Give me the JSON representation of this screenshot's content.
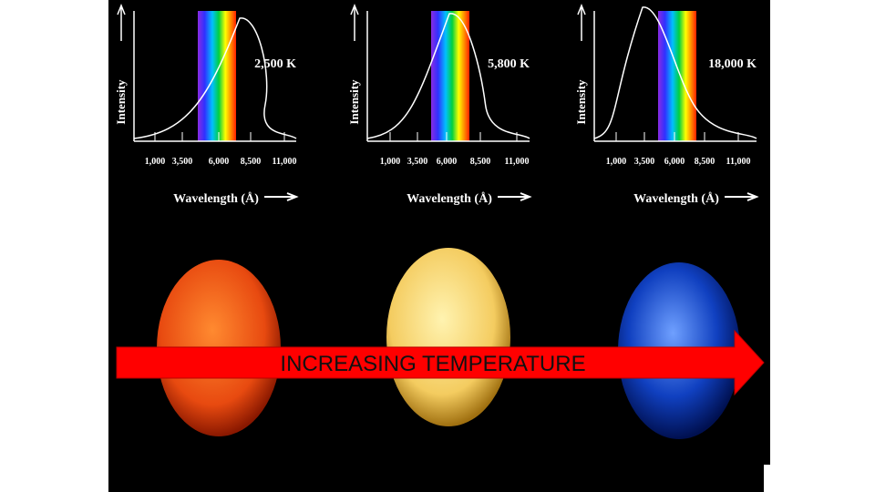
{
  "panels": [
    {
      "y_label": "Intensity",
      "temperature": "2,500 K",
      "x_ticks": [
        "1,000",
        "3,500",
        "6,000",
        "8,500",
        "11,000"
      ],
      "x_label": "Wavelength (Å)"
    },
    {
      "y_label": "Intensity",
      "temperature": "5,800 K",
      "x_ticks": [
        "1,000",
        "3,500",
        "6,000",
        "8,500",
        "11,000"
      ],
      "x_label": "Wavelength (Å)"
    },
    {
      "y_label": "Intensity",
      "temperature": "18,000 K",
      "x_ticks": [
        "1,000",
        "3,500",
        "6,000",
        "8,500",
        "11,000"
      ],
      "x_label": "Wavelength (Å)"
    }
  ],
  "arrow_label": "INCREASING TEMPERATURE"
}
